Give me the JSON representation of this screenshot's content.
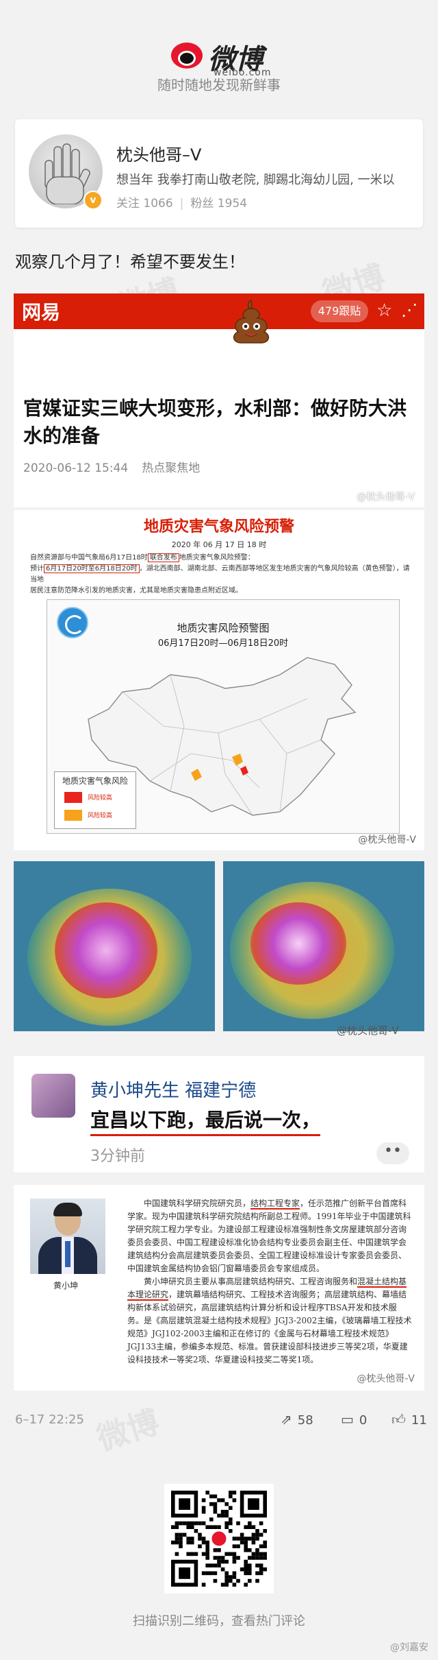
{
  "header": {
    "logo_text": "微博",
    "logo_sub": "weibo.com",
    "slogan": "随时随地发现新鲜事"
  },
  "profile": {
    "name": "枕头他哥–V",
    "bio": "想当年 我拳打南山敬老院, 脚踢北海幼儿园, 一米以",
    "following_label": "关注 1066",
    "followers_label": "粉丝 1954",
    "badge": "v"
  },
  "post": {
    "text": "观察几个月了！希望不要发生！"
  },
  "article": {
    "source_logo": "网易",
    "follow_count": "479跟贴",
    "title": "官媒证实三峡大坝变形，水利部：做好防大洪水的准备",
    "date": "2020-06-12 15:44",
    "category": "热点聚焦地",
    "watermark": "@枕头他哥-V",
    "accent": "#d81e06"
  },
  "warning": {
    "title": "地质灾害气象风险预警",
    "date": "2020 年 06 月 17 日 18 时",
    "body_line1_a": "自然资源部与中国气象局6月17日18时",
    "body_line1_hl": "联合发布",
    "body_line1_b": "地质灾害气象风险预警：",
    "body_line2_a": "预计",
    "body_line2_hl": "6月17日20时至6月18日20时",
    "body_line2_b": "，湖北西南部、湖南北部、云南西部等地区发生地质灾害的气象风险较高（黄色预警），请当地",
    "body_line3": "居民注意防范降水引发的地质灾害，尤其是地质灾害隐患点附近区域。",
    "map_title": "地质灾害风险预警图",
    "map_subtitle": "06月17日20时—06月18日20时",
    "legend_title": "地质灾害气象风险",
    "legend_items": [
      {
        "label": "风险较高",
        "color": "#e8251d"
      },
      {
        "label": "风险较高",
        "color": "#f7a21b"
      }
    ],
    "watermark": "@枕头他哥-V"
  },
  "weather": {
    "watermark": "@枕头他哥-V"
  },
  "comment": {
    "user": "黄小坤先生 福建宁德",
    "text": "宜昌以下跑，最后说一次，",
    "time": "3分钟前",
    "more": "••"
  },
  "bio": {
    "caption": "黄小坤",
    "para1_a": "中国建筑科学研究院研究员，",
    "para1_ul": "结构工程专家",
    "para1_b": "，任示范推广创新平台首席科学家。现为中国建筑科学研究院结构所副总工程师。1991年毕业于中国建筑科学研究院工程力学专业。为建设部工程建设标准强制性条文房屋建筑部分咨询委员会委员、中国工程建设标准化协会结构专业委员会副主任、中国建筑学会建筑结构分会高层建筑委员会委员、全国工程建设标准设计专家委员会委员、中国建筑金属结构协会铝门窗幕墙委员会专家组成员。",
    "para2_a": "黄小坤研究员主要从事高层建筑结构研究、工程咨询服务和",
    "para2_ul": "混凝土结构基本理论研究",
    "para2_b": "，建筑幕墙结构研究、工程技术咨询服务；高层建筑结构、幕墙结构新体系试验研究，高层建筑结构计算分析和设计程序TBSA开发和技术服务。是《高层建筑混凝土结构技术规程》JGJ3-2002主编，《玻璃幕墙工程技术规范》JGJ102-2003主编和正在修订的《金属与石材幕墙工程技术规范》JGJ133主编，参编多本规范、标准。曾获建设部科技进步三等奖2项，华夏建设科技技术一等奖2项、华夏建设科技奖二等奖1项。",
    "watermark": "@枕头他哥-V"
  },
  "actions": {
    "date": "6–17 22:25",
    "share_count": "58",
    "comment_count": "0",
    "like_count": "11"
  },
  "qr": {
    "caption": "扫描识别二维码，查看热门评论"
  },
  "corner_watermark": "@刘嘉安"
}
